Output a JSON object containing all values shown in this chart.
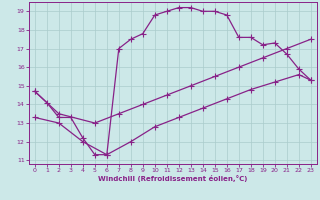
{
  "xlabel": "Windchill (Refroidissement éolien,°C)",
  "xlim": [
    -0.5,
    23.5
  ],
  "ylim": [
    10.8,
    19.5
  ],
  "xticks": [
    0,
    1,
    2,
    3,
    4,
    5,
    6,
    7,
    8,
    9,
    10,
    11,
    12,
    13,
    14,
    15,
    16,
    17,
    18,
    19,
    20,
    21,
    22,
    23
  ],
  "yticks": [
    11,
    12,
    13,
    14,
    15,
    16,
    17,
    18,
    19
  ],
  "bg_color": "#cce8e8",
  "line_color": "#882288",
  "grid_color": "#aacccc",
  "line1_x": [
    0,
    1,
    2,
    3,
    4,
    5,
    6,
    7,
    8,
    9,
    10,
    11,
    12,
    13,
    14,
    15,
    16,
    17,
    18,
    19,
    20,
    21,
    22,
    23
  ],
  "line1_y": [
    14.7,
    14.1,
    13.3,
    13.3,
    12.2,
    11.3,
    11.3,
    17.0,
    17.5,
    17.8,
    18.8,
    19.0,
    19.2,
    19.2,
    19.0,
    19.0,
    18.8,
    17.6,
    17.6,
    17.2,
    17.3,
    16.7,
    15.9,
    15.3
  ],
  "line2_x": [
    0,
    2,
    5,
    7,
    9,
    11,
    13,
    15,
    17,
    19,
    21,
    23
  ],
  "line2_y": [
    14.7,
    13.5,
    13.0,
    13.5,
    14.0,
    14.5,
    15.0,
    15.5,
    16.0,
    16.5,
    17.0,
    17.5
  ],
  "line3_x": [
    0,
    2,
    4,
    6,
    8,
    10,
    12,
    14,
    16,
    18,
    20,
    22,
    23
  ],
  "line3_y": [
    13.3,
    13.0,
    12.0,
    11.3,
    12.0,
    12.8,
    13.3,
    13.8,
    14.3,
    14.8,
    15.2,
    15.6,
    15.3
  ],
  "marker_size": 2.5,
  "lw": 0.9
}
